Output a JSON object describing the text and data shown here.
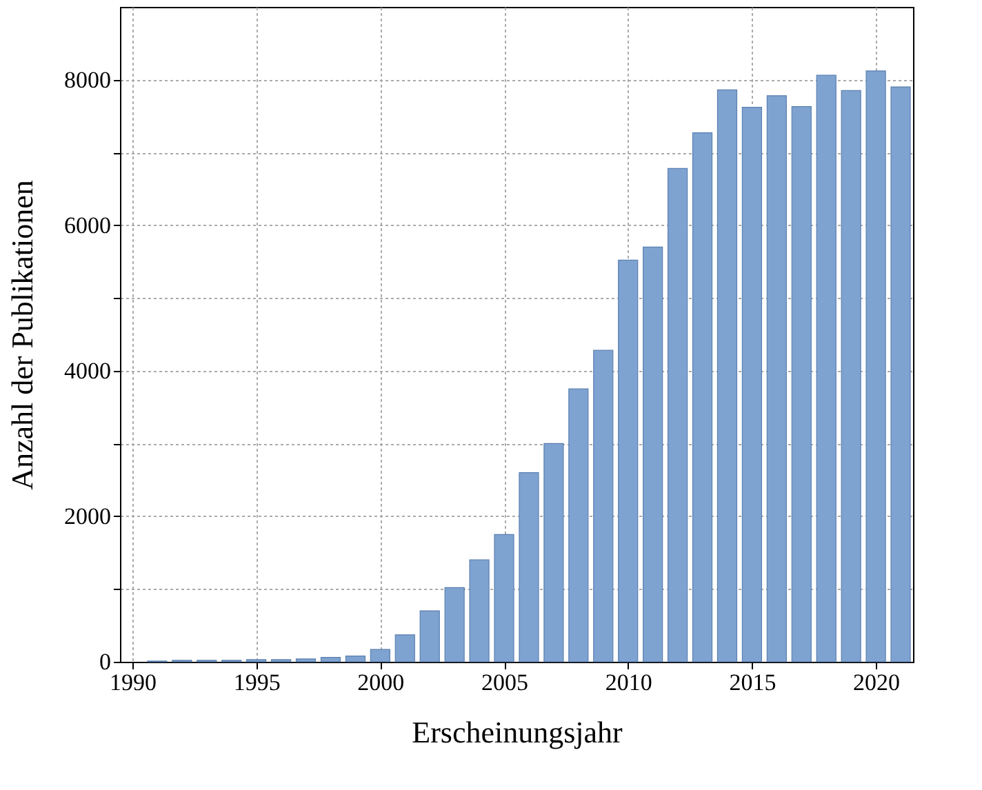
{
  "chart_data": {
    "type": "bar",
    "xlabel": "Erscheinungsjahr",
    "ylabel": "Anzahl der Publikationen",
    "x": [
      1991,
      1992,
      1993,
      1994,
      1995,
      1996,
      1997,
      1998,
      1999,
      2000,
      2001,
      2002,
      2003,
      2004,
      2005,
      2006,
      2007,
      2008,
      2009,
      2010,
      2011,
      2012,
      2013,
      2014,
      2015,
      2016,
      2017,
      2018,
      2019,
      2020,
      2021
    ],
    "values": [
      10,
      20,
      20,
      20,
      30,
      30,
      40,
      60,
      80,
      170,
      370,
      700,
      1020,
      1400,
      1750,
      2600,
      3000,
      3750,
      4280,
      5520,
      5700,
      6780,
      7270,
      7860,
      7620,
      7780,
      7630,
      8060,
      7850,
      8120,
      7900
    ],
    "color": "#7fa3d0",
    "xlim": [
      1989.5,
      2021.5
    ],
    "xticks": [
      1990,
      1995,
      2000,
      2005,
      2010,
      2015,
      2020
    ],
    "ylim": [
      0,
      9000
    ],
    "yticks": [
      0,
      {
        "value": 1000,
        "label": null
      },
      2000,
      {
        "value": 3000,
        "label": null
      },
      4000,
      {
        "value": 5000,
        "label": null
      },
      6000,
      {
        "value": 7000,
        "label": null
      },
      8000
    ],
    "grid": true
  }
}
